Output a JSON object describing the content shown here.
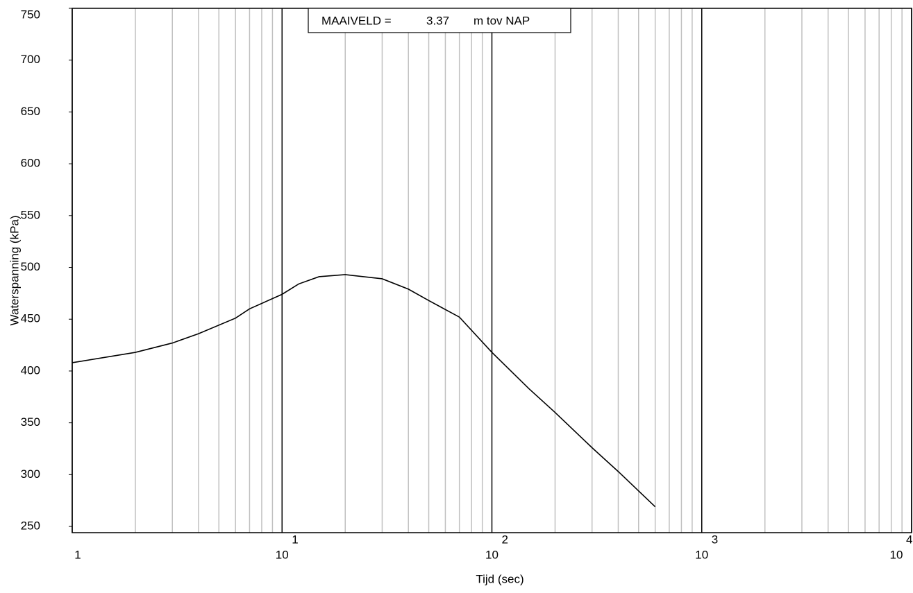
{
  "chart_data": {
    "type": "line",
    "annotation": {
      "label": "MAAIVELD =",
      "value": "3.37",
      "unit": "m tov NAP"
    },
    "ylabel": "Waterspanning (kPa)",
    "xlabel": "Tijd (sec)",
    "x": [
      1,
      2,
      3,
      4,
      6,
      7,
      10,
      12,
      15,
      20,
      30,
      40,
      50,
      70,
      100,
      150,
      200,
      300,
      400,
      600
    ],
    "values": [
      408,
      418,
      427,
      436,
      451,
      460,
      474,
      484,
      491,
      493,
      489,
      479,
      468,
      452,
      418,
      383,
      360,
      326,
      303,
      269
    ],
    "color": "#000000",
    "xscale": "log",
    "xlim": [
      1,
      10000
    ],
    "xticks": [
      1,
      {
        "value": 10,
        "label": "10",
        "exponent": "1"
      },
      {
        "value": 100,
        "label": "10",
        "exponent": "2"
      },
      {
        "value": 1000,
        "label": "10",
        "exponent": "3"
      },
      {
        "value": 10000,
        "label": "10",
        "exponent": "4"
      }
    ],
    "ylim": [
      244,
      750
    ],
    "yticks": [
      250,
      300,
      350,
      400,
      450,
      500,
      550,
      600,
      650,
      700,
      750
    ],
    "grid": true,
    "minor_grid": true
  }
}
